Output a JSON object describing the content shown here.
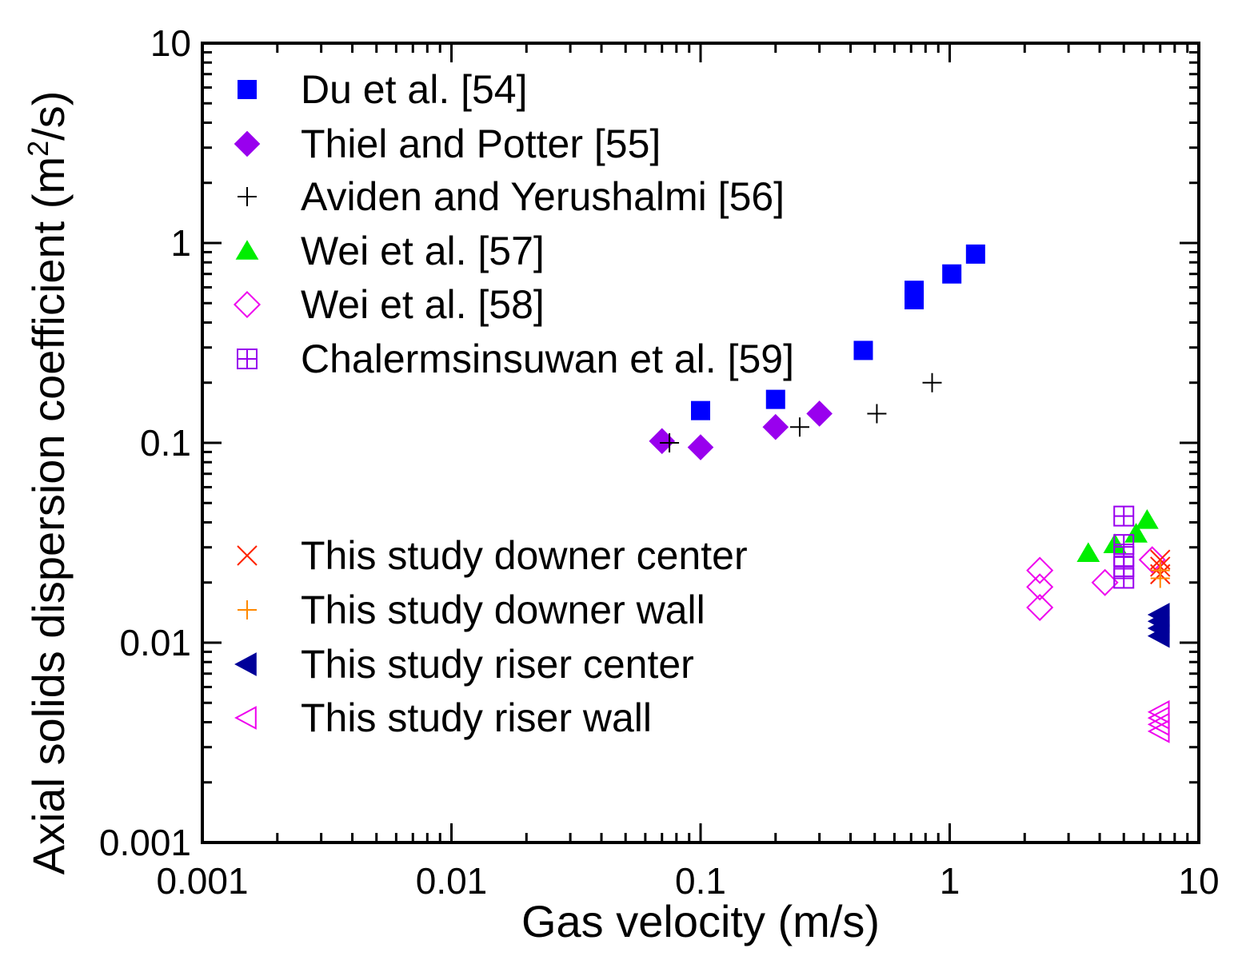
{
  "chart_data": {
    "type": "scatter",
    "title": "",
    "xlabel": "Gas velocity (m/s)",
    "ylabel_main": "Axial solids dispersion coefficient (m",
    "ylabel_sup": "2",
    "ylabel_tail": "/s)",
    "xscale": "log",
    "yscale": "log",
    "xlim": [
      0.001,
      10
    ],
    "ylim": [
      0.001,
      10
    ],
    "x_ticks": [
      {
        "value": 0.001,
        "label": "0.001"
      },
      {
        "value": 0.01,
        "label": "0.01"
      },
      {
        "value": 0.1,
        "label": "0.1"
      },
      {
        "value": 1,
        "label": "1"
      },
      {
        "value": 10,
        "label": "10"
      }
    ],
    "y_ticks": [
      {
        "value": 0.001,
        "label": "0.001"
      },
      {
        "value": 0.01,
        "label": "0.01"
      },
      {
        "value": 0.1,
        "label": "0.1"
      },
      {
        "value": 1,
        "label": "1"
      },
      {
        "value": 10,
        "label": "10"
      }
    ],
    "legend_position": "left",
    "series": [
      {
        "name": "Du et al. [54]",
        "marker": "square-filled",
        "color": "#0000ff",
        "points": [
          [
            0.1,
            0.145
          ],
          [
            0.2,
            0.165
          ],
          [
            0.45,
            0.29
          ],
          [
            0.72,
            0.52
          ],
          [
            0.72,
            0.58
          ],
          [
            1.02,
            0.7
          ],
          [
            1.27,
            0.88
          ]
        ]
      },
      {
        "name": "Thiel and Potter [55]",
        "marker": "diamond-filled",
        "color": "#9900ee",
        "points": [
          [
            0.07,
            0.102
          ],
          [
            0.1,
            0.095
          ],
          [
            0.2,
            0.12
          ],
          [
            0.3,
            0.14
          ]
        ]
      },
      {
        "name": "Aviden and Yerushalmi [56]",
        "marker": "plus",
        "color": "#000000",
        "points": [
          [
            0.075,
            0.1
          ],
          [
            0.25,
            0.12
          ],
          [
            0.51,
            0.14
          ],
          [
            0.85,
            0.2
          ]
        ]
      },
      {
        "name": "Wei et al. [57]",
        "marker": "triangle-up-filled",
        "color": "#00ee00",
        "points": [
          [
            3.6,
            0.028
          ],
          [
            4.6,
            0.031
          ],
          [
            5.6,
            0.035
          ],
          [
            6.2,
            0.041
          ]
        ]
      },
      {
        "name": "Wei et al. [58]",
        "marker": "diamond-open",
        "color": "#ee00ee",
        "points": [
          [
            2.3,
            0.015
          ],
          [
            2.3,
            0.019
          ],
          [
            2.3,
            0.023
          ],
          [
            4.2,
            0.02
          ],
          [
            6.5,
            0.026
          ]
        ]
      },
      {
        "name": "Chalermsinsuwan et al. [59]",
        "marker": "square-cross-open",
        "color": "#9900ee",
        "points": [
          [
            5.0,
            0.043
          ],
          [
            5.0,
            0.031
          ],
          [
            5.0,
            0.027
          ],
          [
            5.0,
            0.024
          ],
          [
            5.0,
            0.021
          ]
        ]
      },
      {
        "name": "This study downer center",
        "marker": "x",
        "color": "#ff2200",
        "points": [
          [
            7.0,
            0.022
          ],
          [
            7.0,
            0.024
          ],
          [
            7.0,
            0.026
          ]
        ]
      },
      {
        "name": "This study downer wall",
        "marker": "plus",
        "color": "#ff8800",
        "points": [
          [
            7.0,
            0.021
          ],
          [
            7.0,
            0.023
          ]
        ]
      },
      {
        "name": "This study riser center",
        "marker": "triangle-left-filled",
        "color": "#000099",
        "points": [
          [
            7.0,
            0.0108
          ],
          [
            7.0,
            0.0118
          ],
          [
            7.0,
            0.0128
          ],
          [
            7.0,
            0.0138
          ]
        ]
      },
      {
        "name": "This study riser wall",
        "marker": "triangle-left-open",
        "color": "#ee00ee",
        "points": [
          [
            7.0,
            0.0036
          ],
          [
            7.0,
            0.0039
          ],
          [
            7.0,
            0.0042
          ],
          [
            7.0,
            0.0045
          ]
        ]
      }
    ]
  }
}
